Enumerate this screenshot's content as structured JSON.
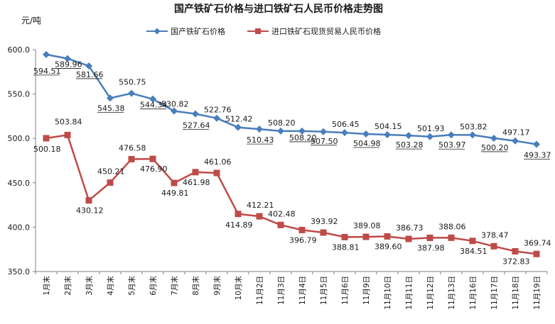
{
  "chart_data": {
    "type": "line",
    "title": "国产铁矿石价格与进口铁矿石人民币价格走势图",
    "ylabel": "元/吨",
    "xlabel": "",
    "ylim": [
      350,
      600
    ],
    "yticks": [
      "350.0",
      "400.0",
      "450.0",
      "500.0",
      "550.0",
      "600.0"
    ],
    "grid": false,
    "legend_position": "top",
    "categories": [
      "1月末",
      "2月末",
      "3月末",
      "4月末",
      "5月末",
      "6月末",
      "7月末",
      "8月末",
      "9月末",
      "10月末",
      "11月2日",
      "11月3日",
      "11月4日",
      "11月5日",
      "11月6日",
      "11月9日",
      "11月10日",
      "11月11日",
      "11月12日",
      "11月13日",
      "11月16日",
      "11月17日",
      "11月18日",
      "11月19日"
    ],
    "series": [
      {
        "name": "国产铁矿石价格",
        "color": "#4a7ebb",
        "marker": "diamond",
        "values": [
          594.51,
          589.96,
          581.66,
          545.38,
          550.75,
          544.34,
          530.82,
          527.64,
          522.76,
          512.42,
          510.43,
          508.2,
          508.2,
          507.5,
          506.45,
          504.98,
          504.15,
          503.28,
          501.93,
          503.97,
          503.82,
          500.2,
          497.17,
          493.37
        ],
        "labels": [
          "594.51",
          "589.96",
          "581.66",
          "545.38",
          "550.75",
          "544.34",
          "530.82",
          "527.64",
          "522.76",
          "512.42",
          "510.43",
          "508.20",
          "508.20",
          "507.50",
          "506.45",
          "504.98",
          "504.15",
          "503.28",
          "501.93",
          "503.97",
          "503.82",
          "500.20",
          "497.17",
          "493.37"
        ]
      },
      {
        "name": "进口铁矿石现货贸易人民币价格",
        "color": "#be4b48",
        "marker": "square",
        "values": [
          500.18,
          503.84,
          430.12,
          450.21,
          476.58,
          476.9,
          449.81,
          461.98,
          461.06,
          414.89,
          412.21,
          402.48,
          396.79,
          393.92,
          388.81,
          389.08,
          389.6,
          386.73,
          387.98,
          388.06,
          384.51,
          378.47,
          372.83,
          369.74
        ],
        "labels": [
          "500.18",
          "503.84",
          "430.12",
          "450.21",
          "476.58",
          "476.90",
          "449.81",
          "461.98",
          "461.06",
          "414.89",
          "412.21",
          "402.48",
          "396.79",
          "393.92",
          "388.81",
          "389.08",
          "389.60",
          "386.73",
          "387.98",
          "388.06",
          "384.51",
          "378.47",
          "372.83",
          "369.74"
        ]
      }
    ]
  }
}
